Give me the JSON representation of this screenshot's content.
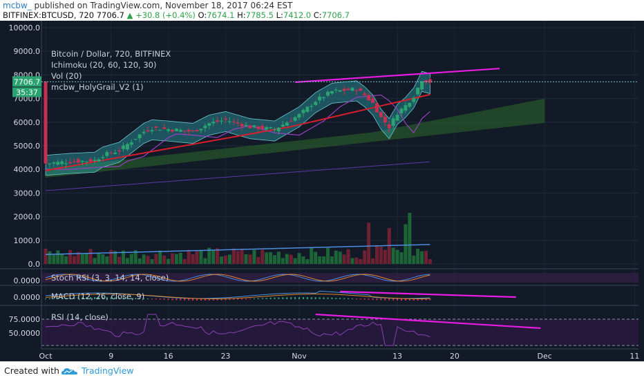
{
  "header": {
    "user": "mcbw_",
    "published": "published on TradingView.com, November 18, 2017 06:24 EST",
    "symbol": "BITFINEX:BTCUSD, 720",
    "last": "7706.7",
    "change": "▲ +30.8 (+0.4%)",
    "o_key": "O:",
    "o_val": "7674.1",
    "h_key": "H:",
    "h_val": "7785.5",
    "l_key": "L:",
    "l_val": "7412.0",
    "c_key": "C:",
    "c_val": "7706.7"
  },
  "legend": {
    "title": "Bitcoin / Dollar, 720, BITFINEX",
    "ichimoku": "Ichimoku (20, 60, 120, 30)",
    "vol": "Vol (20)",
    "holygrail": "mcbw_HolyGrail_V2 (1)"
  },
  "price_tag": {
    "price": "7706.7",
    "countdown": "35:37"
  },
  "panes": {
    "stoch": "Stoch RSI (3, 3, 14, 14, close)",
    "macd": "MACD (12, 26, close, 9)",
    "rsi": "RSI (14, close)"
  },
  "footer": {
    "created": "Created with",
    "brand": "TradingView"
  },
  "chart_data": {
    "type": "candlestick",
    "title": "Bitcoin / Dollar, 720, BITFINEX",
    "y_ticks": [
      "10000.0",
      "9000.0",
      "8000.0",
      "7000.0",
      "6000.0",
      "5000.0",
      "4000.0",
      "3000.0",
      "2000.0",
      "1000.0",
      "0.0"
    ],
    "ylim": [
      0,
      10000
    ],
    "x_ticks": [
      "Oct",
      "9",
      "16",
      "23",
      "Nov",
      "13",
      "20",
      "Dec",
      "11"
    ],
    "stoch_ticks": [
      "0.0000"
    ],
    "macd_ticks": [
      "0.0000"
    ],
    "rsi_ticks": [
      "75.0000",
      "50.0000"
    ],
    "close_anchors": [
      {
        "d": 0,
        "v": 4250
      },
      {
        "d": 3,
        "v": 4330
      },
      {
        "d": 6,
        "v": 4380
      },
      {
        "d": 7,
        "v": 4600
      },
      {
        "d": 9,
        "v": 4800
      },
      {
        "d": 12,
        "v": 5600
      },
      {
        "d": 13,
        "v": 5750
      },
      {
        "d": 15,
        "v": 5700
      },
      {
        "d": 18,
        "v": 5600
      },
      {
        "d": 20,
        "v": 5950
      },
      {
        "d": 22,
        "v": 6100
      },
      {
        "d": 25,
        "v": 5800
      },
      {
        "d": 28,
        "v": 5700
      },
      {
        "d": 31,
        "v": 6300
      },
      {
        "d": 33,
        "v": 6900
      },
      {
        "d": 35,
        "v": 7300
      },
      {
        "d": 38,
        "v": 7400
      },
      {
        "d": 39,
        "v": 7150
      },
      {
        "d": 40,
        "v": 6800
      },
      {
        "d": 41,
        "v": 6200
      },
      {
        "d": 42,
        "v": 5800
      },
      {
        "d": 43,
        "v": 6400
      },
      {
        "d": 44,
        "v": 6700
      },
      {
        "d": 45,
        "v": 7100
      },
      {
        "d": 46,
        "v": 7800
      },
      {
        "d": 47,
        "v": 7706
      }
    ],
    "colors": {
      "up": "#2aa370",
      "down": "#c8304f",
      "ma_red": "#d81e2c",
      "ma_purple": "#9b3fc4",
      "band_fill": "#2d9ba6",
      "cloud": "#2b6a2a",
      "trendline": "#e81ce3",
      "vol_ma": "#4b8fe0"
    },
    "grid": true
  }
}
